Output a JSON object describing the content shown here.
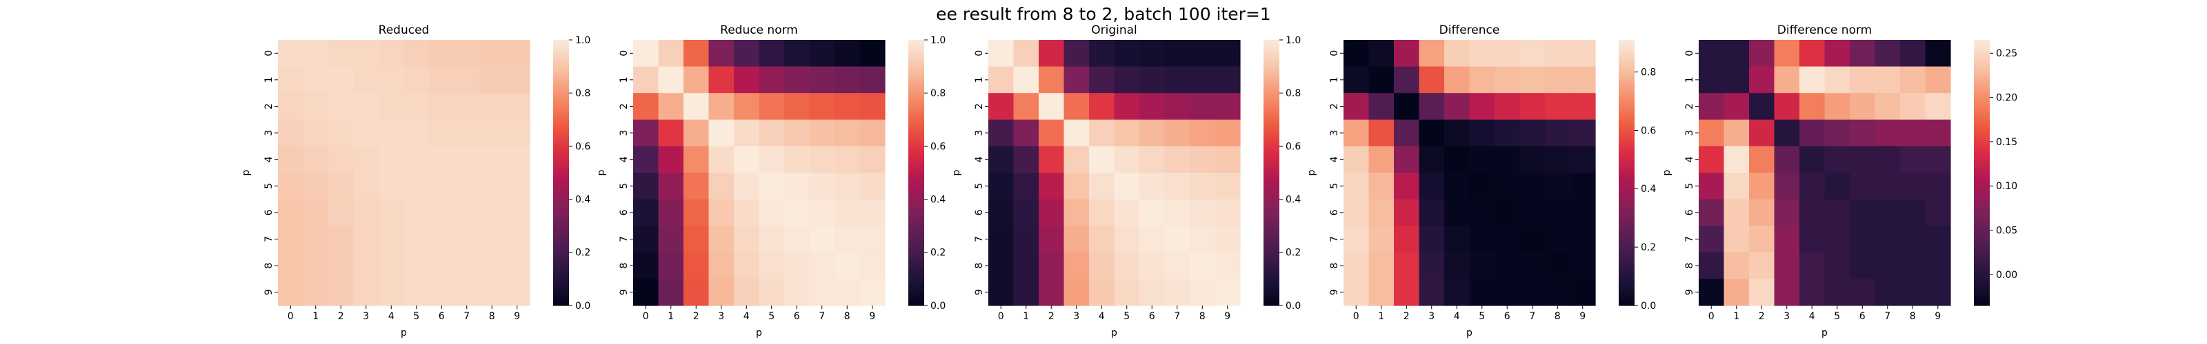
{
  "suptitle": "ee result from 8 to 2, batch 100 iter=1",
  "colormap": "rocket",
  "chart_data": [
    {
      "type": "heatmap",
      "title": "Reduced",
      "xlabel": "p",
      "ylabel": "p",
      "x": [
        "0",
        "1",
        "2",
        "3",
        "4",
        "5",
        "6",
        "7",
        "8",
        "9"
      ],
      "y": [
        "0",
        "1",
        "2",
        "3",
        "4",
        "5",
        "6",
        "7",
        "8",
        "9"
      ],
      "colorbar": {
        "vmin": 0.0,
        "vmax": 1.0,
        "ticks": [
          0.0,
          0.2,
          0.4,
          0.6,
          0.8,
          1.0
        ],
        "tick_labels": [
          "0.0",
          "0.2",
          "0.4",
          "0.6",
          "0.8",
          "1.0"
        ]
      },
      "values": [
        [
          0.96,
          0.96,
          0.95,
          0.95,
          0.94,
          0.93,
          0.92,
          0.92,
          0.91,
          0.91
        ],
        [
          0.95,
          0.96,
          0.96,
          0.95,
          0.95,
          0.94,
          0.93,
          0.93,
          0.92,
          0.92
        ],
        [
          0.94,
          0.95,
          0.96,
          0.96,
          0.95,
          0.95,
          0.94,
          0.94,
          0.94,
          0.94
        ],
        [
          0.93,
          0.94,
          0.95,
          0.96,
          0.96,
          0.96,
          0.95,
          0.95,
          0.95,
          0.95
        ],
        [
          0.92,
          0.93,
          0.94,
          0.95,
          0.96,
          0.96,
          0.96,
          0.96,
          0.96,
          0.96
        ],
        [
          0.91,
          0.92,
          0.93,
          0.95,
          0.96,
          0.96,
          0.96,
          0.96,
          0.96,
          0.96
        ],
        [
          0.9,
          0.91,
          0.93,
          0.94,
          0.95,
          0.96,
          0.96,
          0.96,
          0.96,
          0.96
        ],
        [
          0.9,
          0.91,
          0.92,
          0.94,
          0.95,
          0.96,
          0.96,
          0.96,
          0.96,
          0.96
        ],
        [
          0.9,
          0.91,
          0.92,
          0.94,
          0.95,
          0.96,
          0.96,
          0.96,
          0.96,
          0.96
        ],
        [
          0.9,
          0.91,
          0.92,
          0.94,
          0.95,
          0.96,
          0.96,
          0.96,
          0.96,
          0.96
        ]
      ]
    },
    {
      "type": "heatmap",
      "title": "Reduce norm",
      "xlabel": "p",
      "ylabel": "p",
      "x": [
        "0",
        "1",
        "2",
        "3",
        "4",
        "5",
        "6",
        "7",
        "8",
        "9"
      ],
      "y": [
        "0",
        "1",
        "2",
        "3",
        "4",
        "5",
        "6",
        "7",
        "8",
        "9"
      ],
      "colorbar": {
        "vmin": 0.0,
        "vmax": 1.0,
        "ticks": [
          0.0,
          0.2,
          0.4,
          0.6,
          0.8,
          1.0
        ],
        "tick_labels": [
          "0.0",
          "0.2",
          "0.4",
          "0.6",
          "0.8",
          "1.0"
        ]
      },
      "values": [
        [
          1.0,
          0.93,
          0.7,
          0.35,
          0.22,
          0.14,
          0.09,
          0.06,
          0.03,
          0.0
        ],
        [
          0.93,
          1.0,
          0.85,
          0.6,
          0.48,
          0.4,
          0.36,
          0.34,
          0.32,
          0.3
        ],
        [
          0.7,
          0.85,
          1.0,
          0.85,
          0.78,
          0.73,
          0.7,
          0.68,
          0.67,
          0.66
        ],
        [
          0.35,
          0.6,
          0.85,
          1.0,
          0.96,
          0.93,
          0.91,
          0.89,
          0.88,
          0.87
        ],
        [
          0.22,
          0.48,
          0.78,
          0.96,
          1.0,
          0.98,
          0.96,
          0.95,
          0.94,
          0.93
        ],
        [
          0.14,
          0.4,
          0.73,
          0.93,
          0.98,
          1.0,
          0.99,
          0.98,
          0.97,
          0.96
        ],
        [
          0.09,
          0.36,
          0.7,
          0.91,
          0.96,
          0.99,
          1.0,
          0.99,
          0.98,
          0.98
        ],
        [
          0.06,
          0.34,
          0.68,
          0.89,
          0.95,
          0.98,
          0.99,
          1.0,
          0.99,
          0.99
        ],
        [
          0.03,
          0.32,
          0.67,
          0.88,
          0.94,
          0.97,
          0.98,
          0.99,
          1.0,
          0.99
        ],
        [
          0.0,
          0.3,
          0.66,
          0.87,
          0.93,
          0.96,
          0.98,
          0.99,
          0.99,
          1.0
        ]
      ]
    },
    {
      "type": "heatmap",
      "title": "Original",
      "xlabel": "p",
      "ylabel": "p",
      "x": [
        "0",
        "1",
        "2",
        "3",
        "4",
        "5",
        "6",
        "7",
        "8",
        "9"
      ],
      "y": [
        "0",
        "1",
        "2",
        "3",
        "4",
        "5",
        "6",
        "7",
        "8",
        "9"
      ],
      "colorbar": {
        "vmin": 0.0,
        "vmax": 1.0,
        "ticks": [
          0.0,
          0.2,
          0.4,
          0.6,
          0.8,
          1.0
        ],
        "tick_labels": [
          "0.0",
          "0.2",
          "0.4",
          "0.6",
          "0.8",
          "1.0"
        ]
      },
      "values": [
        [
          1.0,
          0.93,
          0.55,
          0.2,
          0.1,
          0.07,
          0.06,
          0.05,
          0.05,
          0.05
        ],
        [
          0.93,
          1.0,
          0.75,
          0.35,
          0.2,
          0.15,
          0.13,
          0.12,
          0.12,
          0.12
        ],
        [
          0.55,
          0.75,
          1.0,
          0.72,
          0.6,
          0.5,
          0.45,
          0.42,
          0.4,
          0.4
        ],
        [
          0.2,
          0.35,
          0.72,
          1.0,
          0.93,
          0.9,
          0.87,
          0.85,
          0.83,
          0.82
        ],
        [
          0.1,
          0.2,
          0.6,
          0.93,
          1.0,
          0.97,
          0.95,
          0.93,
          0.92,
          0.91
        ],
        [
          0.07,
          0.15,
          0.5,
          0.9,
          0.97,
          1.0,
          0.98,
          0.97,
          0.96,
          0.95
        ],
        [
          0.06,
          0.13,
          0.45,
          0.87,
          0.95,
          0.98,
          1.0,
          0.99,
          0.98,
          0.97
        ],
        [
          0.05,
          0.12,
          0.42,
          0.85,
          0.93,
          0.97,
          0.99,
          1.0,
          0.99,
          0.98
        ],
        [
          0.05,
          0.12,
          0.4,
          0.83,
          0.92,
          0.96,
          0.98,
          0.99,
          1.0,
          0.99
        ],
        [
          0.05,
          0.12,
          0.4,
          0.82,
          0.91,
          0.95,
          0.97,
          0.98,
          0.99,
          1.0
        ]
      ]
    },
    {
      "type": "heatmap",
      "title": "Difference",
      "xlabel": "p",
      "ylabel": "p",
      "x": [
        "0",
        "1",
        "2",
        "3",
        "4",
        "5",
        "6",
        "7",
        "8",
        "9"
      ],
      "y": [
        "0",
        "1",
        "2",
        "3",
        "4",
        "5",
        "6",
        "7",
        "8",
        "9"
      ],
      "colorbar": {
        "vmin": 0.0,
        "vmax": 0.91,
        "ticks": [
          0.0,
          0.2,
          0.4,
          0.6,
          0.8
        ],
        "tick_labels": [
          "0.0",
          "0.2",
          "0.4",
          "0.6",
          "0.8"
        ]
      },
      "values": [
        [
          0.0,
          0.03,
          0.4,
          0.75,
          0.84,
          0.86,
          0.86,
          0.87,
          0.86,
          0.86
        ],
        [
          0.03,
          0.0,
          0.21,
          0.6,
          0.75,
          0.79,
          0.8,
          0.81,
          0.8,
          0.8
        ],
        [
          0.4,
          0.21,
          0.0,
          0.23,
          0.35,
          0.45,
          0.49,
          0.52,
          0.54,
          0.54
        ],
        [
          0.75,
          0.6,
          0.23,
          0.0,
          0.03,
          0.06,
          0.08,
          0.1,
          0.12,
          0.13
        ],
        [
          0.84,
          0.75,
          0.35,
          0.03,
          0.0,
          0.01,
          0.01,
          0.03,
          0.04,
          0.05
        ],
        [
          0.86,
          0.79,
          0.45,
          0.06,
          0.01,
          0.0,
          0.01,
          0.01,
          0.02,
          0.01
        ],
        [
          0.86,
          0.8,
          0.49,
          0.08,
          0.01,
          0.01,
          0.0,
          0.01,
          0.01,
          0.01
        ],
        [
          0.87,
          0.81,
          0.52,
          0.1,
          0.03,
          0.01,
          0.01,
          0.0,
          0.01,
          0.01
        ],
        [
          0.86,
          0.8,
          0.54,
          0.12,
          0.04,
          0.02,
          0.01,
          0.01,
          0.0,
          0.01
        ],
        [
          0.86,
          0.8,
          0.54,
          0.13,
          0.05,
          0.01,
          0.01,
          0.01,
          0.01,
          0.0
        ]
      ]
    },
    {
      "type": "heatmap",
      "title": "Difference norm",
      "xlabel": "p",
      "ylabel": "p",
      "x": [
        "0",
        "1",
        "2",
        "3",
        "4",
        "5",
        "6",
        "7",
        "8",
        "9"
      ],
      "y": [
        "0",
        "1",
        "2",
        "3",
        "4",
        "5",
        "6",
        "7",
        "8",
        "9"
      ],
      "colorbar": {
        "vmin": -0.035,
        "vmax": 0.265,
        "ticks": [
          0.0,
          0.05,
          0.1,
          0.15,
          0.2,
          0.25
        ],
        "tick_labels": [
          "0.00",
          "0.05",
          "0.10",
          "0.15",
          "0.20",
          "0.25"
        ]
      },
      "values": [
        [
          0.0,
          0.0,
          0.08,
          0.19,
          0.14,
          0.1,
          0.06,
          0.03,
          0.01,
          -0.03
        ],
        [
          0.0,
          0.0,
          0.1,
          0.22,
          0.26,
          0.25,
          0.24,
          0.24,
          0.23,
          0.22
        ],
        [
          0.08,
          0.1,
          0.0,
          0.13,
          0.19,
          0.21,
          0.22,
          0.23,
          0.24,
          0.25
        ],
        [
          0.19,
          0.22,
          0.13,
          0.0,
          0.05,
          0.06,
          0.07,
          0.08,
          0.08,
          0.08
        ],
        [
          0.14,
          0.26,
          0.19,
          0.05,
          0.0,
          0.01,
          0.01,
          0.01,
          0.02,
          0.02
        ],
        [
          0.1,
          0.25,
          0.21,
          0.06,
          0.01,
          0.0,
          0.01,
          0.01,
          0.01,
          0.01
        ],
        [
          0.06,
          0.24,
          0.22,
          0.07,
          0.01,
          0.01,
          0.0,
          0.0,
          0.0,
          0.01
        ],
        [
          0.03,
          0.24,
          0.23,
          0.08,
          0.01,
          0.01,
          0.0,
          0.0,
          0.0,
          0.0
        ],
        [
          0.01,
          0.23,
          0.24,
          0.08,
          0.02,
          0.01,
          0.0,
          0.0,
          0.0,
          0.0
        ],
        [
          -0.03,
          0.22,
          0.25,
          0.08,
          0.02,
          0.01,
          0.01,
          0.0,
          0.0,
          0.0
        ]
      ]
    }
  ]
}
